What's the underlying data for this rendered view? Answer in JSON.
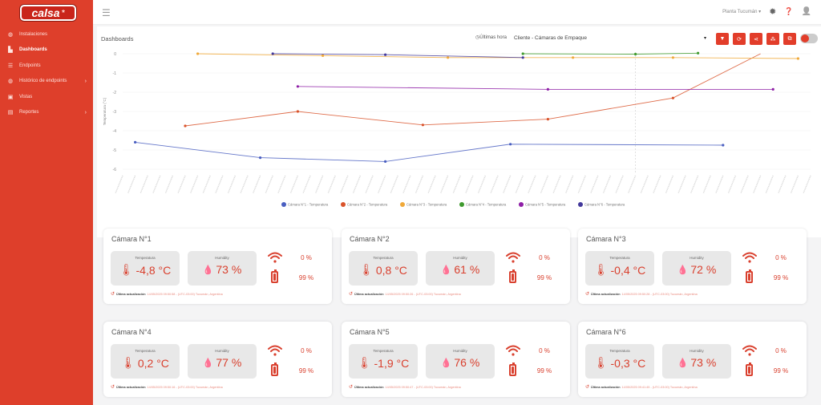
{
  "brand": {
    "name": "calsa",
    "star": "*"
  },
  "sidebar": {
    "items": [
      {
        "label": "Instalaciones",
        "icon": "globe-icon",
        "glyph": "◍",
        "chevron": ""
      },
      {
        "label": "Dashboards",
        "icon": "dashboard-icon",
        "glyph": "▙",
        "chevron": "",
        "active": true
      },
      {
        "label": "Endpoints",
        "icon": "list-icon",
        "glyph": "☰",
        "chevron": ""
      },
      {
        "label": "Histórico de endpoints",
        "icon": "history-icon",
        "glyph": "◍",
        "chevron": "›"
      },
      {
        "label": "Vistas",
        "icon": "image-icon",
        "glyph": "▣",
        "chevron": ""
      },
      {
        "label": "Reportes",
        "icon": "report-icon",
        "glyph": "▤",
        "chevron": "›"
      }
    ]
  },
  "topbar": {
    "menu_glyph": "☰",
    "location": "Planta Tucumán ▾",
    "gear_glyph": "✹",
    "help_glyph": "❓",
    "user_glyph": "👤"
  },
  "dashboard": {
    "title": "Dashboards",
    "time_filter": "Últimas hora",
    "time_glyph": "◷",
    "client": "Cliente - Cámaras de Empaque",
    "caret": "▾",
    "tools": [
      {
        "name": "filter-button",
        "icon": "filter-icon",
        "glyph": "▼"
      },
      {
        "name": "refresh-button",
        "icon": "refresh-icon",
        "glyph": "⟳"
      },
      {
        "name": "share-button",
        "icon": "share-icon",
        "glyph": "⋖"
      },
      {
        "name": "layout-button",
        "icon": "grid-icon",
        "glyph": "⁂"
      },
      {
        "name": "export-button",
        "icon": "external-link-icon",
        "glyph": "⧉"
      }
    ],
    "lock_glyph": "●"
  },
  "chart_data": {
    "type": "line",
    "ylabel": "Temperatura (°C)",
    "ylim": [
      -6,
      0
    ],
    "yticks": [
      0,
      -1,
      -2,
      -3,
      -4,
      -5,
      -6
    ],
    "x_count": 56,
    "grid": true,
    "legend_position": "bottom",
    "series": [
      {
        "name": "Cámara N°1 - Temperatura",
        "color": "#4a5fc1",
        "points": [
          [
            1,
            -4.6
          ],
          [
            11,
            -5.4
          ],
          [
            21,
            -5.6
          ],
          [
            31,
            -4.7
          ],
          [
            48,
            -4.75
          ]
        ]
      },
      {
        "name": "Cámara N°2 - Temperatura",
        "color": "#d9532b",
        "points": [
          [
            5,
            -3.75
          ],
          [
            14,
            -3.0
          ],
          [
            24,
            -3.7
          ],
          [
            34,
            -3.4
          ],
          [
            44,
            -2.3
          ],
          [
            51,
            0
          ]
        ]
      },
      {
        "name": "Cámara N°3 - Temperatura",
        "color": "#f0a93a",
        "points": [
          [
            6,
            0
          ],
          [
            16,
            -0.1
          ],
          [
            26,
            -0.2
          ],
          [
            36,
            -0.2
          ],
          [
            44,
            -0.2
          ],
          [
            54,
            -0.25
          ]
        ]
      },
      {
        "name": "Cámara N°4 - Temperatura",
        "color": "#3f9a2e",
        "points": [
          [
            32,
            0
          ],
          [
            41,
            -0.02
          ],
          [
            46,
            0.03
          ]
        ]
      },
      {
        "name": "Cámara N°5 - Temperatura",
        "color": "#8e1fa6",
        "points": [
          [
            14,
            -1.7
          ],
          [
            34,
            -1.85
          ],
          [
            52,
            -1.85
          ]
        ]
      },
      {
        "name": "Cámara N°6 - Temperatura",
        "color": "#43399b",
        "points": [
          [
            12,
            0
          ],
          [
            21,
            -0.05
          ],
          [
            32,
            -0.2
          ]
        ]
      }
    ]
  },
  "cameras": [
    {
      "title": "Cámara N°1",
      "temp_label": "Temperatura",
      "temp": "-4,8 °C",
      "hum_label": "Humidity",
      "hum": "73 %",
      "signal": "0 %",
      "battery": "99 %",
      "battery_level": 0.99,
      "update_label": "Última actualización",
      "update_value": "14/05/2025 09:50:58 - (UTC-03:00) Tucumán, Argentina"
    },
    {
      "title": "Cámara N°2",
      "temp_label": "Temperatura",
      "temp": "0,8 °C",
      "hum_label": "Humidity",
      "hum": "61 %",
      "signal": "0 %",
      "battery": "99 %",
      "battery_level": 0.99,
      "update_label": "Última actualización",
      "update_value": "14/05/2025 09:50:26 - (UTC-03:00) Tucumán, Argentina"
    },
    {
      "title": "Cámara N°3",
      "temp_label": "Temperatura",
      "temp": "-0,4 °C",
      "hum_label": "Humidity",
      "hum": "72 %",
      "signal": "0 %",
      "battery": "99 %",
      "battery_level": 0.99,
      "update_label": "Última actualización",
      "update_value": "14/05/2025 09:50:28 - (UTC-03:00) Tucumán, Argentina"
    },
    {
      "title": "Cámara N°4",
      "temp_label": "Temperatura",
      "temp": "0,2 °C",
      "hum_label": "Humidity",
      "hum": "77 %",
      "signal": "0 %",
      "battery": "99 %",
      "battery_level": 0.99,
      "update_label": "Última actualización",
      "update_value": "14/05/2025 09:50:16 - (UTC-03:00) Tucumán, Argentina"
    },
    {
      "title": "Cámara N°5",
      "temp_label": "Temperatura",
      "temp": "-1,9 °C",
      "hum_label": "Humidity",
      "hum": "76 %",
      "signal": "0 %",
      "battery": "99 %",
      "battery_level": 0.99,
      "update_label": "Última actualización",
      "update_value": "14/05/2025 09:50:47 - (UTC-03:00) Tucumán, Argentina"
    },
    {
      "title": "Cámara N°6",
      "temp_label": "Temperatura",
      "temp": "-0,3 °C",
      "hum_label": "Humidity",
      "hum": "73 %",
      "signal": "0 %",
      "battery": "99 %",
      "battery_level": 0.99,
      "update_label": "Última actualización",
      "update_value": "14/05/2025 09:41:45 - (UTC-03:00) Tucumán, Argentina"
    }
  ],
  "icons": {
    "thermometer": "🌡",
    "drop": "💧",
    "history": "↺"
  },
  "colors": {
    "accent": "#de3f2b",
    "value": "#d9402e"
  }
}
